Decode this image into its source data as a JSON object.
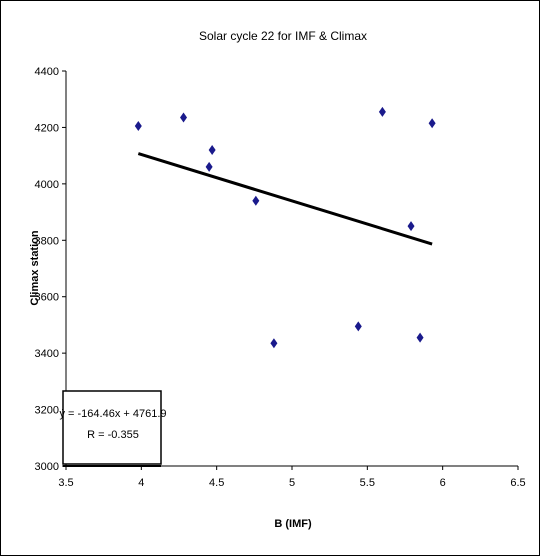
{
  "chart_data": {
    "type": "scatter",
    "title": "Solar cycle 22 for IMF & Climax",
    "xlabel": "B (IMF)",
    "ylabel": "Climax station",
    "xlim": [
      3.5,
      6.5
    ],
    "ylim": [
      3000,
      4400
    ],
    "xticks": [
      "3.5",
      "4",
      "4.5",
      "5",
      "5.5",
      "6",
      "6.5"
    ],
    "yticks": [
      "3000",
      "3200",
      "3400",
      "3600",
      "3800",
      "4000",
      "4200",
      "4400"
    ],
    "grid": false,
    "legend": "none",
    "marker_color": "#1a1a8c",
    "series": [
      {
        "points": [
          {
            "x": 3.98,
            "y": 4205
          },
          {
            "x": 4.28,
            "y": 4235
          },
          {
            "x": 4.45,
            "y": 4060
          },
          {
            "x": 4.47,
            "y": 4120
          },
          {
            "x": 4.76,
            "y": 3940
          },
          {
            "x": 4.88,
            "y": 3435
          },
          {
            "x": 5.44,
            "y": 3495
          },
          {
            "x": 5.6,
            "y": 4255
          },
          {
            "x": 5.79,
            "y": 3850
          },
          {
            "x": 5.85,
            "y": 3455
          },
          {
            "x": 5.93,
            "y": 4215
          }
        ]
      }
    ],
    "trendline": {
      "slope": -164.46,
      "intercept": 4761.9,
      "x_start": 3.98,
      "x_end": 5.93,
      "equation": "y = -164.46x + 4761.9",
      "r_text": "R = -0.355"
    }
  }
}
